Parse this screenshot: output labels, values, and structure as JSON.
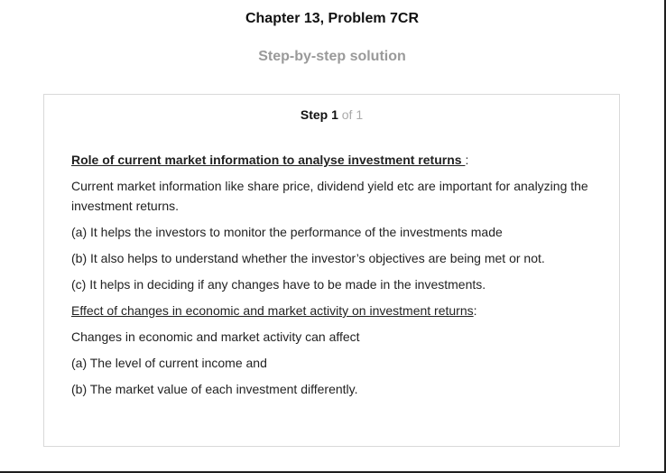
{
  "header": {
    "title": "Chapter 13, Problem 7CR",
    "subtitle": "Step-by-step solution"
  },
  "step": {
    "label": "Step 1",
    "of": "of 1"
  },
  "content": {
    "heading1": "Role of current market information to analyse investment returns ",
    "heading1_suffix": ":",
    "para1": "Current market information like share price, dividend yield etc are important for analyzing the investment returns.",
    "item_a": "(a) It helps the investors to monitor the performance of the investments made",
    "item_b": "(b) It also helps to understand whether the investor’s objectives are being met or not.",
    "item_c": "(c) It helps in deciding if any changes have to be made in the investments.",
    "heading2": "Effect of changes in economic and market activity on investment returns",
    "heading2_suffix": ":",
    "para2": "Changes in economic and market activity can affect",
    "effect_a": "(a) The level of current income and",
    "effect_b": "(b) The market value of each investment differently."
  }
}
